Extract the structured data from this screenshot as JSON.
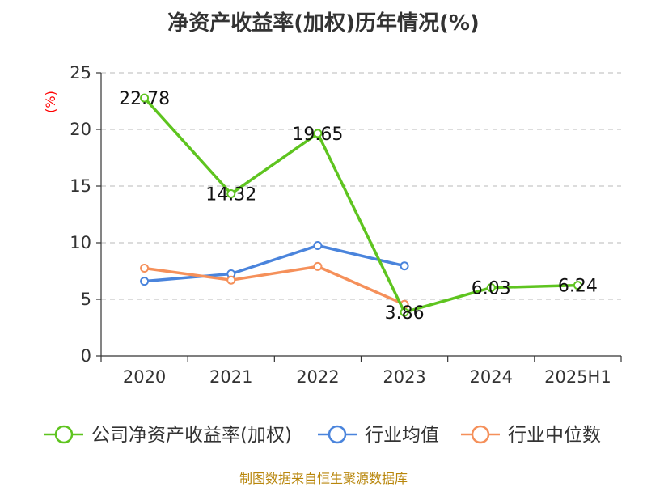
{
  "chart_data": {
    "type": "line",
    "title": "净资产收益率(加权)历年情况(%)",
    "ylabel": "(%)",
    "ylim": [
      0,
      25
    ],
    "yticks": [
      0,
      5,
      10,
      15,
      20,
      25
    ],
    "categories": [
      "2020",
      "2021",
      "2022",
      "2023",
      "2024",
      "2025H1"
    ],
    "grid": true,
    "legend_position": "bottom",
    "series": [
      {
        "name": "公司净资产收益率(加权)",
        "color": "#5ec41f",
        "values": [
          22.78,
          14.32,
          19.65,
          3.86,
          6.03,
          6.24
        ],
        "labels": [
          "22.78",
          "14.32",
          "19.65",
          "3.86",
          "6.03",
          "6.24"
        ]
      },
      {
        "name": "行业均值",
        "color": "#4a84dc",
        "values": [
          6.6,
          7.25,
          9.75,
          7.95,
          null,
          null
        ]
      },
      {
        "name": "行业中位数",
        "color": "#f5905a",
        "values": [
          7.75,
          6.7,
          7.9,
          4.55,
          null,
          null
        ]
      }
    ]
  },
  "source": "制图数据来自恒生聚源数据库"
}
